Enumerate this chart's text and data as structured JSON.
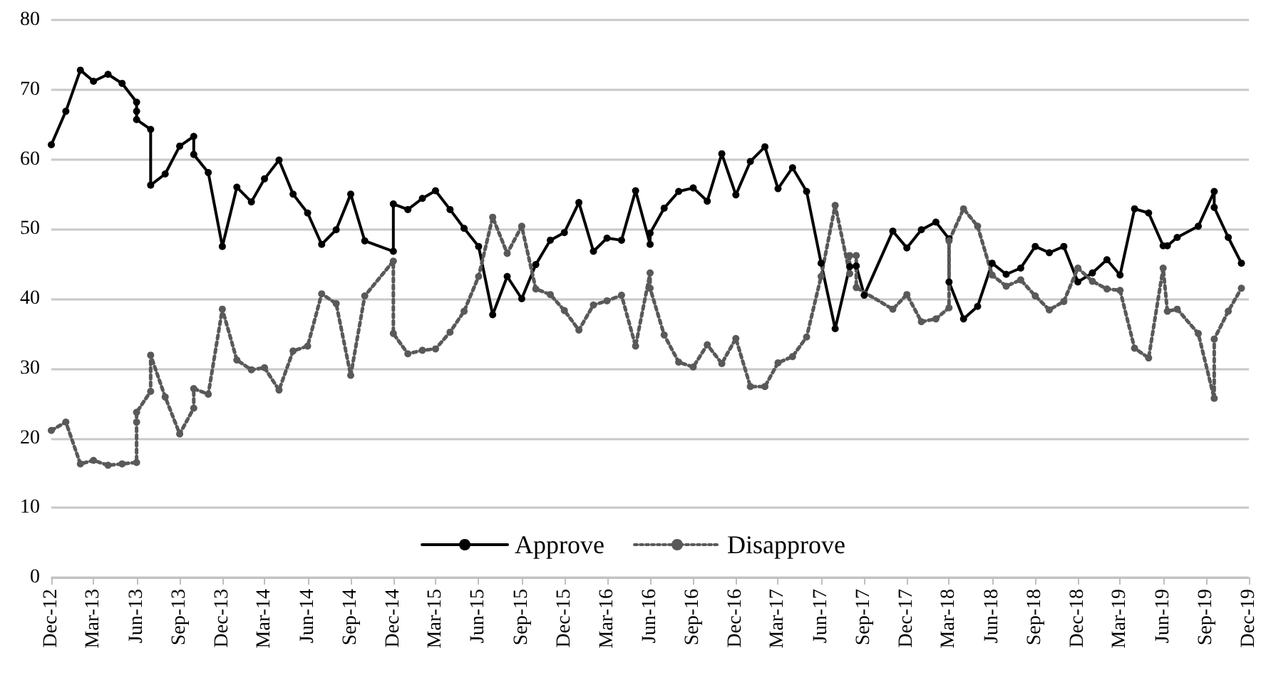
{
  "chart_data": {
    "type": "line",
    "series": [
      {
        "name": "Approve",
        "color": "#000000",
        "line_style": "solid",
        "marker": "circle",
        "x": [
          "2012-12",
          "2013-01",
          "2013-02",
          "2013-03",
          "2013-04",
          "2013-05",
          "2013-06",
          "2013-06",
          "2013-06",
          "2013-07",
          "2013-07",
          "2013-08",
          "2013-09",
          "2013-10",
          "2013-10",
          "2013-11",
          "2013-12",
          "2014-01",
          "2014-02",
          "2014-03",
          "2014-04",
          "2014-05",
          "2014-06",
          "2014-07",
          "2014-08",
          "2014-09",
          "2014-10",
          "2014-12",
          "2014-12",
          "2015-01",
          "2015-02",
          "2015-03",
          "2015-04",
          "2015-05",
          "2015-06",
          "2015-07",
          "2015-08",
          "2015-09",
          "2015-10",
          "2015-11",
          "2015-12",
          "2016-01",
          "2016-02",
          "2016-03",
          "2016-04",
          "2016-05",
          "2016-06",
          "2016-06",
          "2016-07",
          "2016-08",
          "2016-09",
          "2016-10",
          "2016-11",
          "2016-12",
          "2017-01",
          "2017-02",
          "2017-03",
          "2017-04",
          "2017-05",
          "2017-06",
          "2017-07",
          "2017-08",
          "2017-08-15",
          "2017-09",
          "2017-11",
          "2017-12",
          "2018-01",
          "2018-02",
          "2018-03",
          "2018-03",
          "2018-04",
          "2018-05",
          "2018-06",
          "2018-07",
          "2018-08",
          "2018-09",
          "2018-10",
          "2018-11",
          "2018-12",
          "2019-01",
          "2019-02",
          "2019-03",
          "2019-04",
          "2019-05",
          "2019-06",
          "2019-06-10",
          "2019-07",
          "2019-08-15",
          "2019-09-18",
          "2019-09-18",
          "2019-10-18",
          "2019-11-15"
        ],
        "values": [
          62.1,
          66.9,
          72.8,
          71.2,
          72.2,
          70.9,
          68.2,
          66.9,
          65.7,
          64.3,
          56.3,
          57.9,
          61.9,
          63.3,
          60.7,
          58.1,
          47.5,
          56.0,
          53.9,
          57.2,
          59.9,
          55.0,
          52.3,
          47.8,
          49.9,
          55.0,
          48.3,
          46.8,
          53.6,
          52.8,
          54.4,
          55.5,
          52.8,
          50.1,
          47.5,
          37.7,
          43.2,
          40.0,
          44.9,
          48.4,
          49.5,
          53.8,
          46.8,
          48.7,
          48.4,
          55.5,
          47.8,
          49.4,
          53.0,
          55.4,
          55.9,
          54.0,
          60.8,
          54.9,
          59.7,
          61.8,
          55.8,
          58.8,
          55.4,
          45.1,
          35.7,
          44.6,
          44.7,
          40.5,
          49.7,
          47.3,
          49.9,
          51.0,
          48.6,
          42.4,
          37.1,
          38.9,
          45.1,
          43.5,
          44.4,
          47.5,
          46.6,
          47.5,
          42.4,
          43.7,
          45.6,
          43.4,
          52.9,
          52.3,
          47.6,
          47.6,
          48.8,
          50.4,
          55.4,
          53.1,
          48.8,
          45.1
        ]
      },
      {
        "name": "Disapprove",
        "color": "#595959",
        "line_style": "dotted",
        "marker": "circle",
        "x": [
          "2012-12",
          "2013-01",
          "2013-02",
          "2013-03",
          "2013-04",
          "2013-05",
          "2013-06",
          "2013-06",
          "2013-06",
          "2013-07",
          "2013-07",
          "2013-08",
          "2013-09",
          "2013-10",
          "2013-10",
          "2013-11",
          "2013-12",
          "2014-01",
          "2014-02",
          "2014-03",
          "2014-04",
          "2014-05",
          "2014-06",
          "2014-07",
          "2014-08",
          "2014-09",
          "2014-10",
          "2014-12",
          "2014-12",
          "2015-01",
          "2015-02",
          "2015-03",
          "2015-04",
          "2015-05",
          "2015-06",
          "2015-07",
          "2015-08",
          "2015-09",
          "2015-10",
          "2015-11",
          "2015-12",
          "2016-01",
          "2016-02",
          "2016-03",
          "2016-04",
          "2016-05",
          "2016-06",
          "2016-06",
          "2016-07",
          "2016-08",
          "2016-09",
          "2016-10",
          "2016-11",
          "2016-12",
          "2017-01",
          "2017-02",
          "2017-03",
          "2017-04",
          "2017-05",
          "2017-06",
          "2017-07",
          "2017-08",
          "2017-08",
          "2017-08-15",
          "2017-08-15",
          "2017-11",
          "2017-12",
          "2018-01",
          "2018-02",
          "2018-03",
          "2018-03",
          "2018-04",
          "2018-05",
          "2018-06",
          "2018-07",
          "2018-08",
          "2018-09",
          "2018-10",
          "2018-11",
          "2018-12",
          "2019-01",
          "2019-02",
          "2019-03",
          "2019-04",
          "2019-05",
          "2019-06",
          "2019-06-10",
          "2019-07",
          "2019-08-15",
          "2019-09-18",
          "2019-09-18",
          "2019-10-18",
          "2019-11-15"
        ],
        "values": [
          21.1,
          22.3,
          16.3,
          16.8,
          16.1,
          16.3,
          16.5,
          22.3,
          23.7,
          26.7,
          31.9,
          25.9,
          20.6,
          24.3,
          27.1,
          26.3,
          38.5,
          31.2,
          29.8,
          30.1,
          26.9,
          32.5,
          33.2,
          40.7,
          39.3,
          29.0,
          40.4,
          45.4,
          35.0,
          32.1,
          32.6,
          32.8,
          35.2,
          38.2,
          43.2,
          51.7,
          46.5,
          50.4,
          41.4,
          40.6,
          38.3,
          35.5,
          39.1,
          39.7,
          40.5,
          33.2,
          43.7,
          41.5,
          34.8,
          30.9,
          30.2,
          33.4,
          30.7,
          34.3,
          27.4,
          27.4,
          30.8,
          31.7,
          34.5,
          43.2,
          53.4,
          43.6,
          46.2,
          46.2,
          41.6,
          38.5,
          40.6,
          36.7,
          37.1,
          38.7,
          48.3,
          52.9,
          50.4,
          43.4,
          41.8,
          42.7,
          40.4,
          38.4,
          39.6,
          44.4,
          42.5,
          41.4,
          41.2,
          32.9,
          31.5,
          44.4,
          38.2,
          38.5,
          35.0,
          25.7,
          34.2,
          38.2,
          41.5
        ]
      }
    ],
    "xlim": [
      "2012-12",
      "2019-12"
    ],
    "xticks": [
      {
        "value": "2012-12",
        "label": "Dec-12"
      },
      {
        "value": "2013-03",
        "label": "Mar-13"
      },
      {
        "value": "2013-06",
        "label": "Jun-13"
      },
      {
        "value": "2013-09",
        "label": "Sep-13"
      },
      {
        "value": "2013-12",
        "label": "Dec-13"
      },
      {
        "value": "2014-03",
        "label": "Mar-14"
      },
      {
        "value": "2014-06",
        "label": "Jun-14"
      },
      {
        "value": "2014-09",
        "label": "Sep-14"
      },
      {
        "value": "2014-12",
        "label": "Dec-14"
      },
      {
        "value": "2015-03",
        "label": "Mar-15"
      },
      {
        "value": "2015-06",
        "label": "Jun-15"
      },
      {
        "value": "2015-09",
        "label": "Sep-15"
      },
      {
        "value": "2015-12",
        "label": "Dec-15"
      },
      {
        "value": "2016-03",
        "label": "Mar-16"
      },
      {
        "value": "2016-06",
        "label": "Jun-16"
      },
      {
        "value": "2016-09",
        "label": "Sep-16"
      },
      {
        "value": "2016-12",
        "label": "Dec-16"
      },
      {
        "value": "2017-03",
        "label": "Mar-17"
      },
      {
        "value": "2017-06",
        "label": "Jun-17"
      },
      {
        "value": "2017-09",
        "label": "Sep-17"
      },
      {
        "value": "2017-12",
        "label": "Dec-17"
      },
      {
        "value": "2018-03",
        "label": "Mar-18"
      },
      {
        "value": "2018-06",
        "label": "Jun-18"
      },
      {
        "value": "2018-09",
        "label": "Sep-18"
      },
      {
        "value": "2018-12",
        "label": "Dec-18"
      },
      {
        "value": "2019-03",
        "label": "Mar-19"
      },
      {
        "value": "2019-06",
        "label": "Jun-19"
      },
      {
        "value": "2019-09",
        "label": "Sep-19"
      },
      {
        "value": "2019-12",
        "label": "Dec-19"
      }
    ],
    "ylim": [
      0,
      80
    ],
    "yticks": [
      0,
      10,
      20,
      30,
      40,
      50,
      60,
      70,
      80
    ],
    "grid": "y",
    "legend": "bottom"
  }
}
